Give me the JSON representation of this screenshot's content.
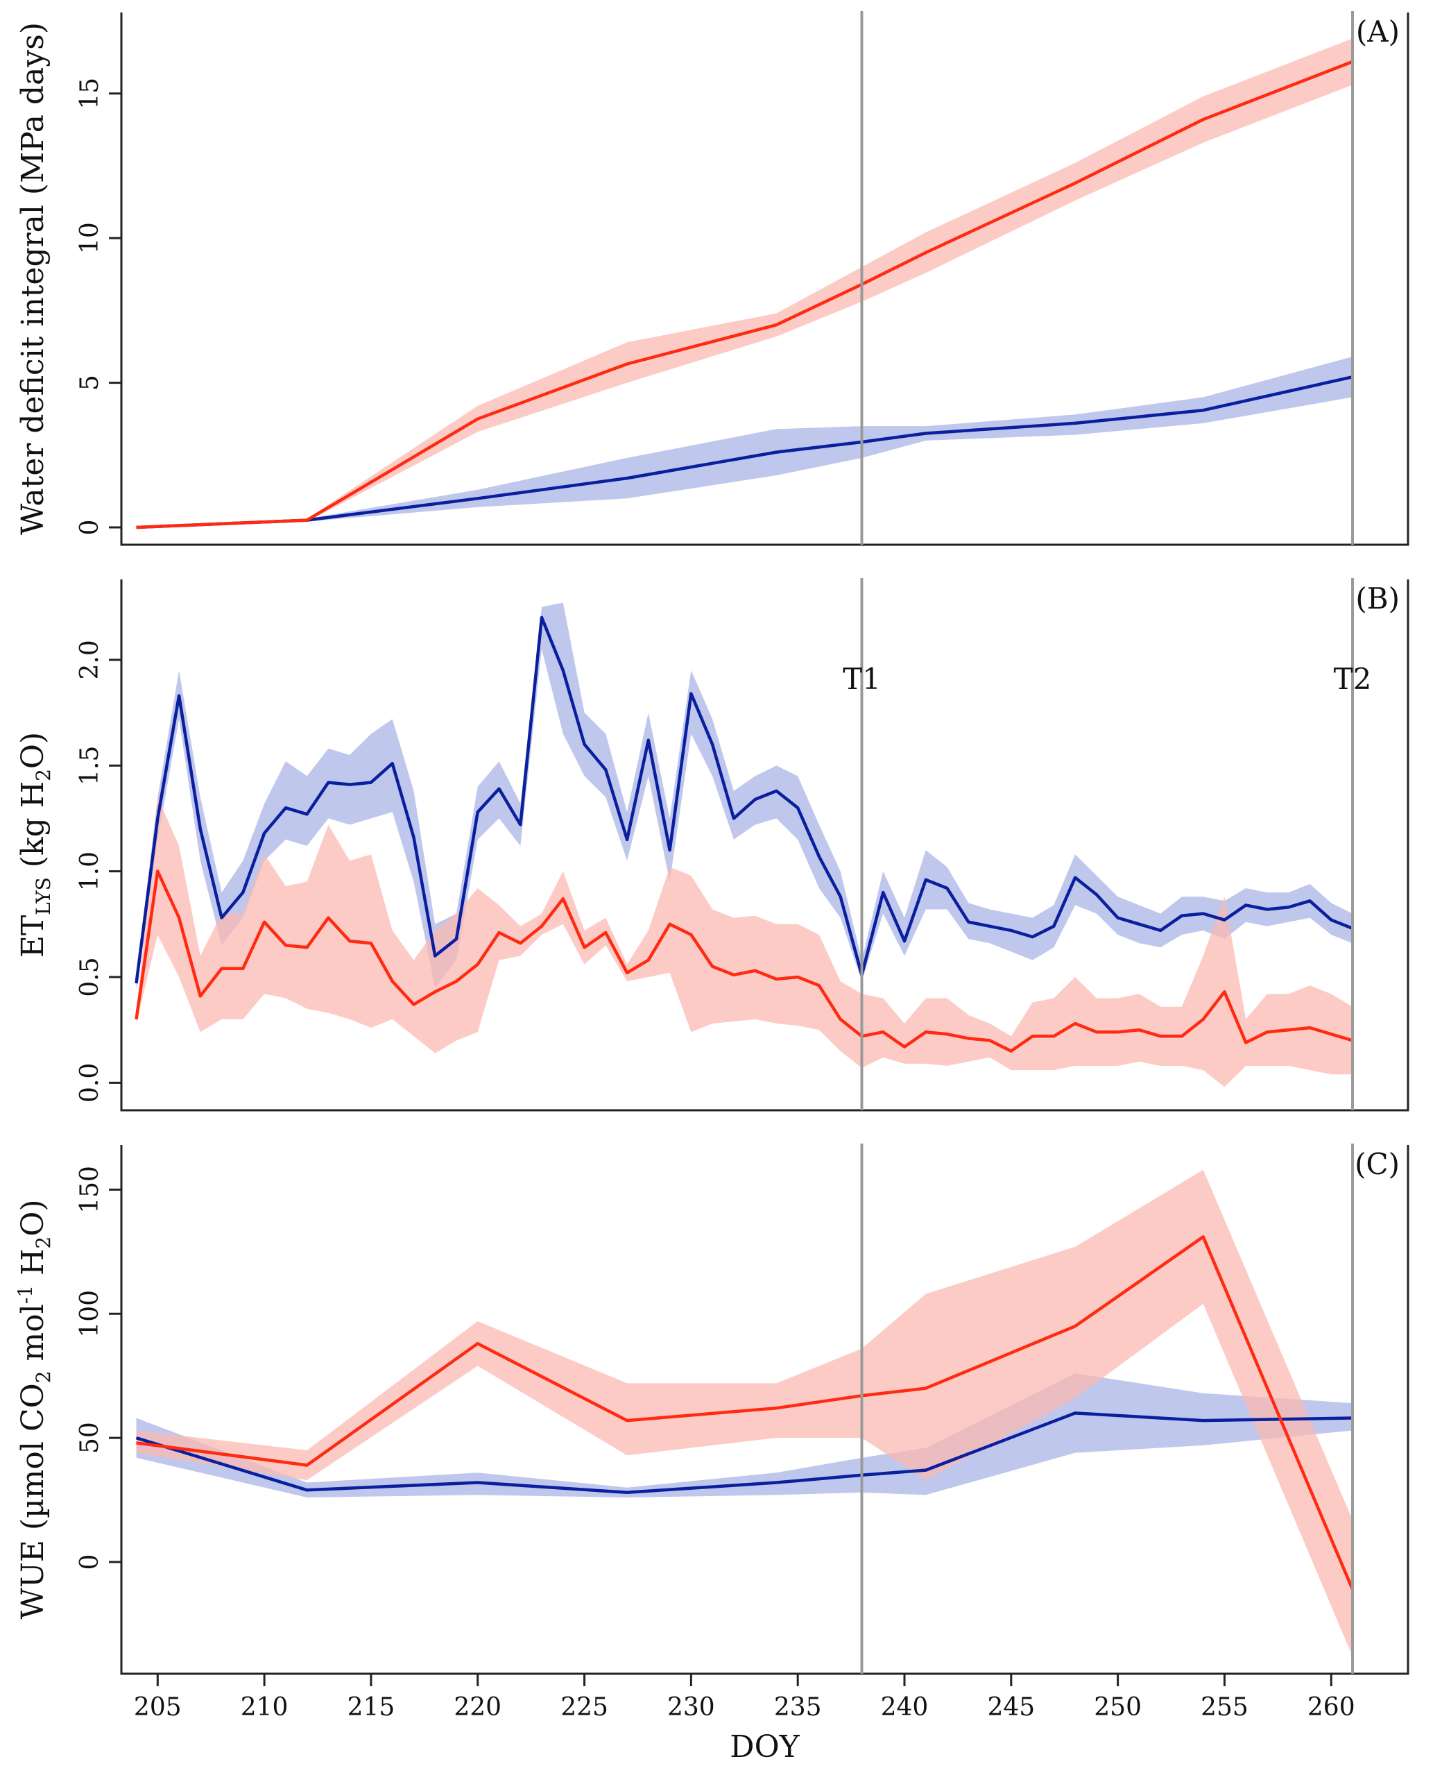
{
  "colors": {
    "blue_line": "#0a1f9e",
    "blue_band": "#a9b4e6",
    "red_line": "#ff2a12",
    "red_band": "#fbbab2",
    "vline": "#9a9a9a"
  },
  "shared": {
    "xlabel": "DOY",
    "x_ticks": [
      "205",
      "210",
      "215",
      "220",
      "225",
      "230",
      "235",
      "240",
      "245",
      "250",
      "255",
      "260"
    ],
    "x_range": [
      203.3,
      263.6
    ],
    "vlines": [
      238,
      261
    ]
  },
  "chart_data": [
    {
      "type": "line",
      "panel": "(A)",
      "ylabel": "Water deficit integral (MPa days)",
      "ylim": [
        -0.6,
        17.8
      ],
      "y_ticks": [
        "0",
        "5",
        "10",
        "15"
      ],
      "series": [
        {
          "name": "blue",
          "x": [
            204,
            212,
            220,
            227,
            234,
            238,
            241,
            248,
            254,
            261
          ],
          "y": [
            0,
            0.25,
            1.0,
            1.7,
            2.6,
            2.95,
            3.25,
            3.6,
            4.05,
            5.2
          ],
          "lo": [
            0,
            0.2,
            0.7,
            1.0,
            1.8,
            2.4,
            3.0,
            3.2,
            3.6,
            4.5
          ],
          "hi": [
            0,
            0.3,
            1.3,
            2.4,
            3.4,
            3.5,
            3.5,
            3.9,
            4.5,
            5.9
          ]
        },
        {
          "name": "red",
          "x": [
            204,
            212,
            220,
            227,
            234,
            238,
            241,
            248,
            254,
            261
          ],
          "y": [
            0,
            0.25,
            3.75,
            5.65,
            7.0,
            8.4,
            9.5,
            11.9,
            14.1,
            16.1
          ],
          "lo": [
            0,
            0.2,
            3.3,
            5.0,
            6.6,
            7.8,
            8.8,
            11.3,
            13.3,
            15.3
          ],
          "hi": [
            0,
            0.3,
            4.2,
            6.4,
            7.4,
            9.0,
            10.2,
            12.6,
            14.9,
            16.9
          ]
        }
      ]
    },
    {
      "type": "line",
      "panel": "(B)",
      "ylabel": "ET",
      "ylabel_sub": "LYS",
      "ylabel_mid": "(kg H",
      "ylabel_sub2": "2",
      "ylabel_end": "O)",
      "ylim": [
        -0.13,
        2.38
      ],
      "y_ticks": [
        "0.0",
        "0.5",
        "1.0",
        "1.5",
        "2.0"
      ],
      "markers": [
        "T1",
        "T2"
      ],
      "series": [
        {
          "name": "blue",
          "x": [
            204,
            205,
            206,
            207,
            208,
            209,
            210,
            211,
            212,
            213,
            214,
            215,
            216,
            217,
            218,
            219,
            220,
            221,
            222,
            223,
            224,
            225,
            226,
            227,
            228,
            229,
            230,
            231,
            232,
            233,
            234,
            235,
            236,
            237,
            238,
            239,
            240,
            241,
            242,
            243,
            244,
            245,
            246,
            247,
            248,
            249,
            250,
            251,
            252,
            253,
            254,
            255,
            256,
            257,
            258,
            259,
            260,
            261
          ],
          "y": [
            0.47,
            1.25,
            1.83,
            1.2,
            0.78,
            0.9,
            1.18,
            1.3,
            1.27,
            1.42,
            1.41,
            1.42,
            1.51,
            1.16,
            0.6,
            0.68,
            1.28,
            1.39,
            1.22,
            2.2,
            1.95,
            1.6,
            1.48,
            1.15,
            1.62,
            1.1,
            1.84,
            1.6,
            1.25,
            1.34,
            1.38,
            1.3,
            1.07,
            0.88,
            0.51,
            0.9,
            0.67,
            0.96,
            0.92,
            0.76,
            0.74,
            0.72,
            0.69,
            0.74,
            0.97,
            0.89,
            0.78,
            0.75,
            0.72,
            0.79,
            0.8,
            0.77,
            0.84,
            0.82,
            0.83,
            0.86,
            0.77,
            0.73
          ],
          "lo": [
            0.44,
            1.15,
            1.72,
            1.05,
            0.65,
            0.78,
            1.05,
            1.15,
            1.12,
            1.25,
            1.22,
            1.25,
            1.28,
            0.95,
            0.45,
            0.58,
            1.15,
            1.25,
            1.12,
            2.05,
            1.65,
            1.45,
            1.35,
            1.05,
            1.45,
            0.95,
            1.65,
            1.45,
            1.15,
            1.22,
            1.25,
            1.15,
            0.92,
            0.78,
            0.48,
            0.8,
            0.6,
            0.82,
            0.82,
            0.68,
            0.66,
            0.62,
            0.58,
            0.64,
            0.84,
            0.8,
            0.7,
            0.66,
            0.64,
            0.7,
            0.72,
            0.68,
            0.76,
            0.74,
            0.76,
            0.78,
            0.7,
            0.66
          ],
          "hi": [
            0.5,
            1.35,
            1.95,
            1.35,
            0.9,
            1.05,
            1.32,
            1.52,
            1.45,
            1.58,
            1.55,
            1.65,
            1.72,
            1.38,
            0.75,
            0.8,
            1.4,
            1.52,
            1.32,
            2.25,
            2.27,
            1.75,
            1.65,
            1.28,
            1.75,
            1.25,
            1.95,
            1.72,
            1.38,
            1.45,
            1.5,
            1.45,
            1.22,
            1.0,
            0.58,
            1.0,
            0.78,
            1.1,
            1.02,
            0.85,
            0.82,
            0.8,
            0.78,
            0.84,
            1.08,
            0.98,
            0.88,
            0.84,
            0.8,
            0.88,
            0.88,
            0.86,
            0.92,
            0.9,
            0.9,
            0.94,
            0.85,
            0.8
          ]
        },
        {
          "name": "red",
          "x": [
            204,
            205,
            206,
            207,
            208,
            209,
            210,
            211,
            212,
            213,
            214,
            215,
            216,
            217,
            218,
            219,
            220,
            221,
            222,
            223,
            224,
            225,
            226,
            227,
            228,
            229,
            230,
            231,
            232,
            233,
            234,
            235,
            236,
            237,
            238,
            239,
            240,
            241,
            242,
            243,
            244,
            245,
            246,
            247,
            248,
            249,
            250,
            251,
            252,
            253,
            254,
            255,
            256,
            257,
            258,
            259,
            260,
            261
          ],
          "y": [
            0.3,
            1.0,
            0.78,
            0.41,
            0.54,
            0.54,
            0.76,
            0.65,
            0.64,
            0.78,
            0.67,
            0.66,
            0.48,
            0.37,
            0.43,
            0.48,
            0.56,
            0.71,
            0.66,
            0.74,
            0.87,
            0.64,
            0.71,
            0.52,
            0.58,
            0.75,
            0.7,
            0.55,
            0.51,
            0.53,
            0.49,
            0.5,
            0.46,
            0.3,
            0.22,
            0.24,
            0.17,
            0.24,
            0.23,
            0.21,
            0.2,
            0.15,
            0.22,
            0.22,
            0.28,
            0.24,
            0.24,
            0.25,
            0.22,
            0.22,
            0.3,
            0.43,
            0.19,
            0.24,
            0.25,
            0.26,
            0.23,
            0.2
          ],
          "lo": [
            0.28,
            0.7,
            0.5,
            0.24,
            0.3,
            0.3,
            0.42,
            0.4,
            0.35,
            0.33,
            0.3,
            0.26,
            0.3,
            0.22,
            0.14,
            0.2,
            0.24,
            0.58,
            0.6,
            0.7,
            0.75,
            0.56,
            0.65,
            0.48,
            0.5,
            0.52,
            0.24,
            0.28,
            0.29,
            0.3,
            0.28,
            0.27,
            0.25,
            0.15,
            0.07,
            0.12,
            0.09,
            0.09,
            0.08,
            0.1,
            0.12,
            0.06,
            0.06,
            0.06,
            0.08,
            0.08,
            0.08,
            0.1,
            0.08,
            0.08,
            0.06,
            -0.02,
            0.08,
            0.08,
            0.08,
            0.06,
            0.04,
            0.04
          ],
          "hi": [
            0.32,
            1.35,
            1.12,
            0.6,
            0.8,
            0.8,
            1.08,
            0.93,
            0.95,
            1.22,
            1.05,
            1.08,
            0.72,
            0.58,
            0.72,
            0.8,
            0.92,
            0.84,
            0.74,
            0.8,
            1.0,
            0.72,
            0.78,
            0.56,
            0.72,
            1.02,
            0.98,
            0.82,
            0.78,
            0.79,
            0.75,
            0.75,
            0.7,
            0.48,
            0.42,
            0.4,
            0.28,
            0.4,
            0.4,
            0.32,
            0.28,
            0.22,
            0.38,
            0.4,
            0.5,
            0.4,
            0.4,
            0.42,
            0.36,
            0.36,
            0.6,
            0.88,
            0.3,
            0.42,
            0.42,
            0.46,
            0.42,
            0.36
          ]
        }
      ]
    },
    {
      "type": "line",
      "panel": "(C)",
      "ylabel": "WUE (µmol CO",
      "ylabel_sub": "2",
      "ylabel_mid": " mol",
      "ylabel_sup": "-1",
      "ylabel_mid2": " H",
      "ylabel_sub2": "2",
      "ylabel_end": "O)",
      "ylim": [
        -45,
        168
      ],
      "y_ticks": [
        "0",
        "50",
        "100",
        "150"
      ],
      "series": [
        {
          "name": "blue",
          "x": [
            204,
            212,
            220,
            227,
            234,
            238,
            241,
            248,
            254,
            261
          ],
          "y": [
            50,
            29,
            32,
            28,
            32,
            35,
            37,
            60,
            57,
            58
          ],
          "lo": [
            42,
            26,
            27,
            26,
            27,
            28,
            27,
            44,
            47,
            53
          ],
          "hi": [
            58,
            32,
            36,
            30,
            36,
            42,
            46,
            76,
            68,
            64
          ]
        },
        {
          "name": "red",
          "x": [
            204,
            212,
            220,
            227,
            234,
            238,
            241,
            248,
            254,
            261
          ],
          "y": [
            48,
            39,
            88,
            57,
            62,
            67,
            70,
            95,
            131,
            -11
          ],
          "lo": [
            44,
            33,
            79,
            43,
            50,
            50,
            33,
            66,
            104,
            -38
          ],
          "hi": [
            53,
            45,
            97,
            72,
            72,
            86,
            108,
            127,
            158,
            17
          ]
        }
      ]
    }
  ]
}
